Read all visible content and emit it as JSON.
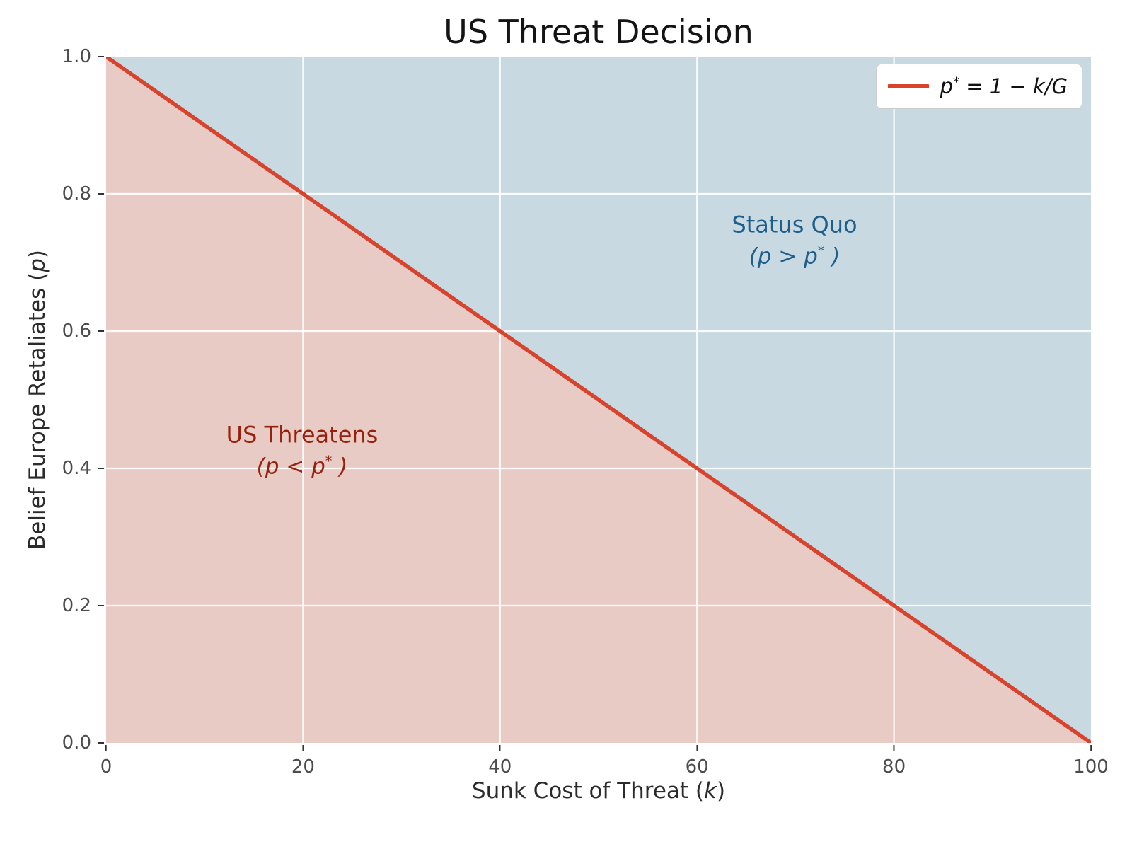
{
  "title": "US Threat Decision",
  "axes": {
    "x": {
      "label_pre": "Sunk Cost of Threat (",
      "label_var": "k",
      "label_post": ")",
      "ticks": [
        "0",
        "20",
        "40",
        "60",
        "80",
        "100"
      ]
    },
    "y": {
      "label_pre": "Belief Europe Retaliates (",
      "label_var": "p",
      "label_post": ")",
      "ticks": [
        "0.0",
        "0.2",
        "0.4",
        "0.6",
        "0.8",
        "1.0"
      ]
    }
  },
  "legend": {
    "entry_var": "p",
    "entry_sup": "*",
    "entry_rest": " = 1 − k/G"
  },
  "regions": [
    {
      "name": "US Threatens",
      "cond_pre": "(p < p",
      "cond_sup": "*",
      "cond_post": " )",
      "text_color": "#96220e"
    },
    {
      "name": "Status Quo",
      "cond_pre": "(p > p",
      "cond_sup": "*",
      "cond_post": " )",
      "text_color": "#1d5f8a"
    }
  ],
  "chart_data": {
    "type": "line",
    "title": "US Threat Decision",
    "xlabel": "Sunk Cost of Threat (k)",
    "ylabel": "Belief Europe Retaliates (p)",
    "xlim": [
      0,
      100
    ],
    "ylim": [
      0.0,
      1.0
    ],
    "xticks": [
      0,
      20,
      40,
      60,
      80,
      100
    ],
    "yticks": [
      0.0,
      0.2,
      0.4,
      0.6,
      0.8,
      1.0
    ],
    "grid": true,
    "grid_color": "white",
    "legend_position": "upper right",
    "series": [
      {
        "name": "p* = 1 − k/G",
        "equation": "p* = 1 - k/G (threshold line, G = 100)",
        "x": [
          0,
          100
        ],
        "y": [
          1.0,
          0.0
        ],
        "color": "#d8432e",
        "linewidth": 5.5
      }
    ],
    "regions": [
      {
        "label": "US Threatens (p < p*)",
        "where": "below threshold line",
        "fill": "#e9cbc6",
        "label_x": 20,
        "label_y": 0.43
      },
      {
        "label": "Status Quo (p > p*)",
        "where": "above threshold line",
        "fill": "#c9d9e2",
        "label_x": 70,
        "label_y": 0.73
      }
    ]
  }
}
